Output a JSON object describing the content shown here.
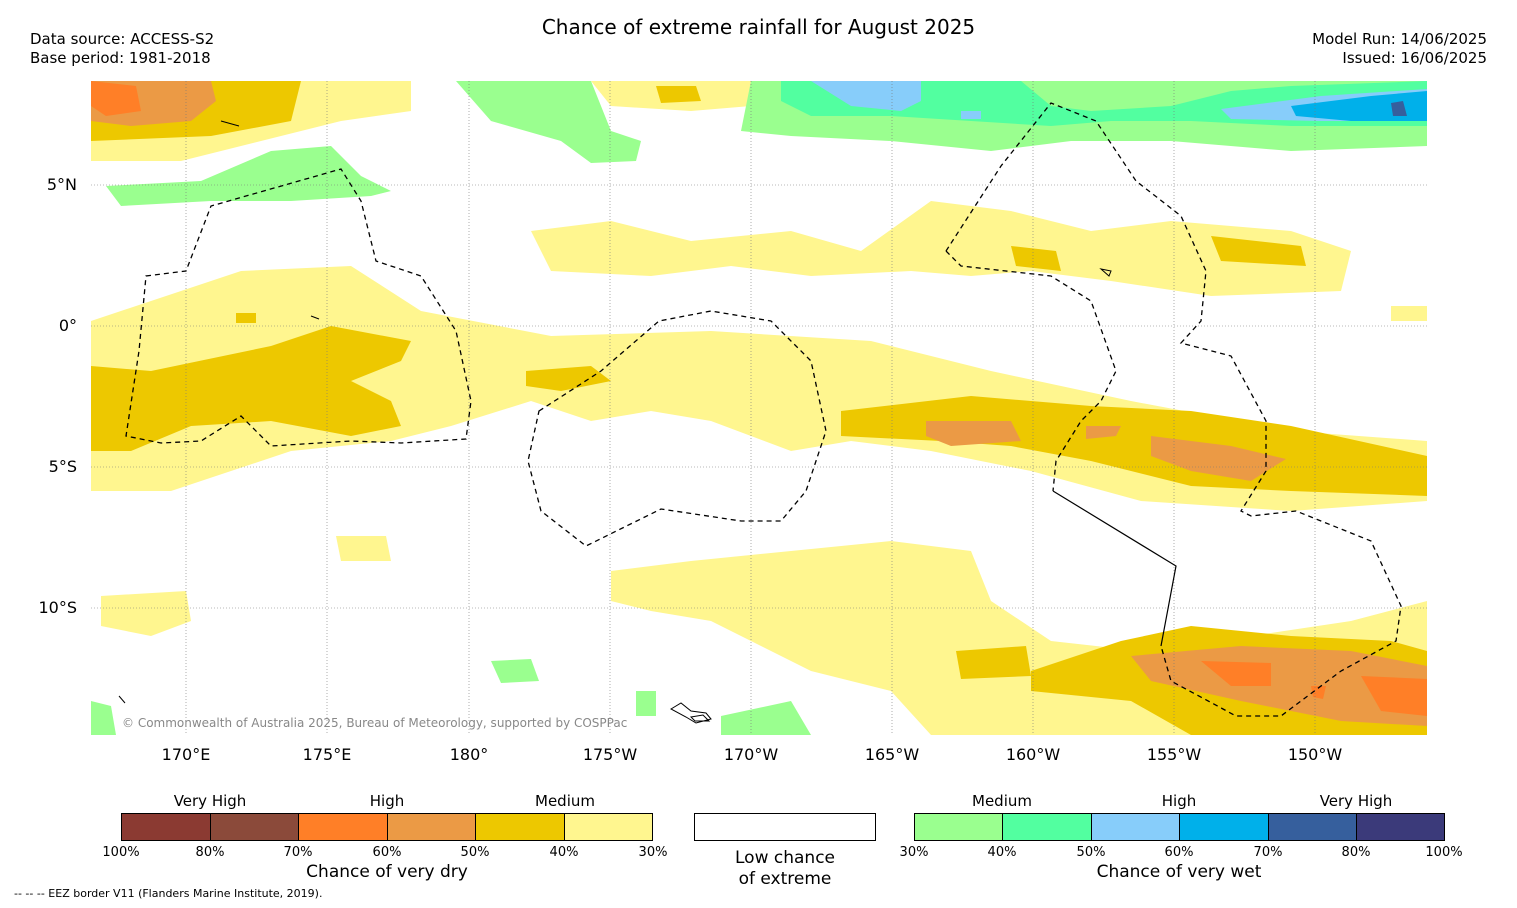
{
  "title": "Chance of extreme rainfall for August 2025",
  "meta": {
    "data_source": "Data source: ACCESS-S2",
    "base_period": "Base period: 1981-2018",
    "model_run": "Model Run: 14/06/2025",
    "issued": "Issued: 16/06/2025"
  },
  "map": {
    "lat_labels": [
      "5°N",
      "0°",
      "5°S",
      "10°S"
    ],
    "lon_labels": [
      "170°E",
      "175°E",
      "180°",
      "175°W",
      "170°W",
      "165°W",
      "160°W",
      "155°W",
      "150°W"
    ],
    "copyright": "© Commonwealth of Australia 2025, Bureau of Meteorology, supported by COSPPac"
  },
  "legend": {
    "dry": {
      "group_labels": [
        "Very High",
        "High",
        "Medium"
      ],
      "ticks": [
        "100%",
        "80%",
        "70%",
        "60%",
        "50%",
        "40%",
        "30%"
      ],
      "colors": [
        "#8b3a32",
        "#8b4a3a",
        "#ff7f27",
        "#eb9a45",
        "#edc800",
        "#fff68f"
      ],
      "title": "Chance of very dry"
    },
    "low": {
      "color": "#ffffff",
      "title_line1": "Low chance",
      "title_line2": "of extreme"
    },
    "wet": {
      "group_labels": [
        "Medium",
        "High",
        "Very High"
      ],
      "ticks": [
        "30%",
        "40%",
        "50%",
        "60%",
        "70%",
        "80%",
        "100%"
      ],
      "colors": [
        "#9aff8f",
        "#52ffa0",
        "#87cdfa",
        "#00b0ea",
        "#365f9d",
        "#3b3a7a"
      ],
      "title": "Chance of very wet"
    }
  },
  "footnote": "-- -- -- EEZ border V11 (Flanders Marine Institute, 2019)."
}
